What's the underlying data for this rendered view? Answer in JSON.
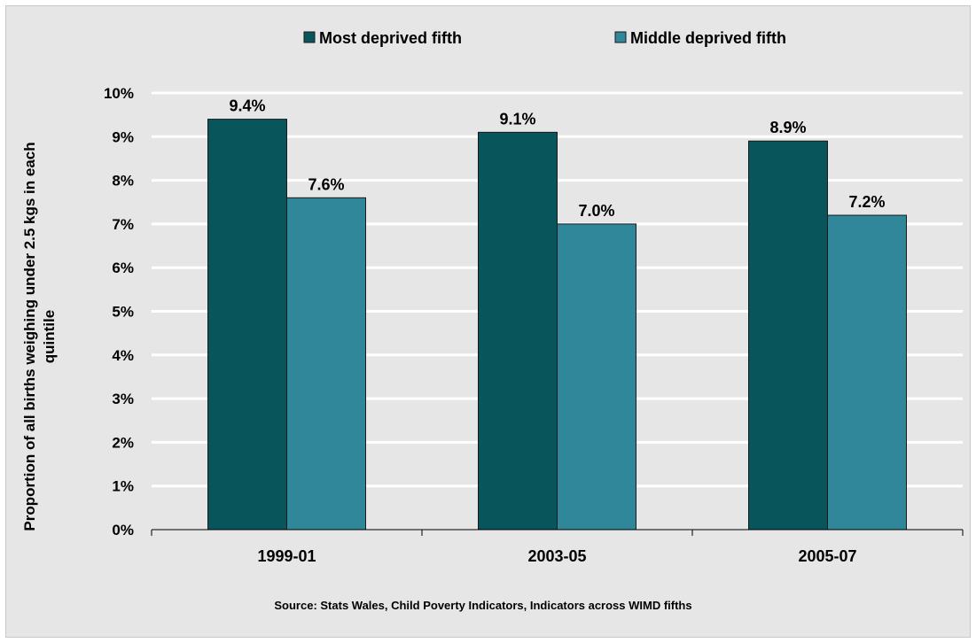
{
  "chart_data": {
    "type": "bar",
    "title": "",
    "xlabel": "",
    "ylabel": "Proportion of all births weighing under 2.5 kgs in each quintile",
    "ylabel_lines": [
      "Proportion of all births weighing under 2.5 kgs in each",
      "quintile"
    ],
    "categories": [
      "1999-01",
      "2003-05",
      "2005-07"
    ],
    "series": [
      {
        "name": "Most deprived fifth",
        "values": [
          9.4,
          9.1,
          8.9
        ],
        "labels": [
          "9.4%",
          "9.1%",
          "8.9%"
        ],
        "color": "#08555c"
      },
      {
        "name": "Middle deprived fifth",
        "values": [
          7.6,
          7.0,
          7.2
        ],
        "labels": [
          "7.6%",
          "7.0%",
          "7.2%"
        ],
        "color": "#31879a"
      }
    ],
    "ylim": [
      0,
      10
    ],
    "yticks": [
      0,
      1,
      2,
      3,
      4,
      5,
      6,
      7,
      8,
      9,
      10
    ],
    "ytick_labels": [
      "0%",
      "1%",
      "2%",
      "3%",
      "4%",
      "5%",
      "6%",
      "7%",
      "8%",
      "9%",
      "10%"
    ],
    "grid": true,
    "gridline_color": "#ffffff",
    "legend_position": "top",
    "source": "Source: Stats Wales, Child Poverty Indicators, Indicators across WIMD fifths"
  },
  "colors": {
    "plot_background": "#e6e6e6",
    "bar_border": "#1a1a1a",
    "axis_line": "#000000"
  }
}
